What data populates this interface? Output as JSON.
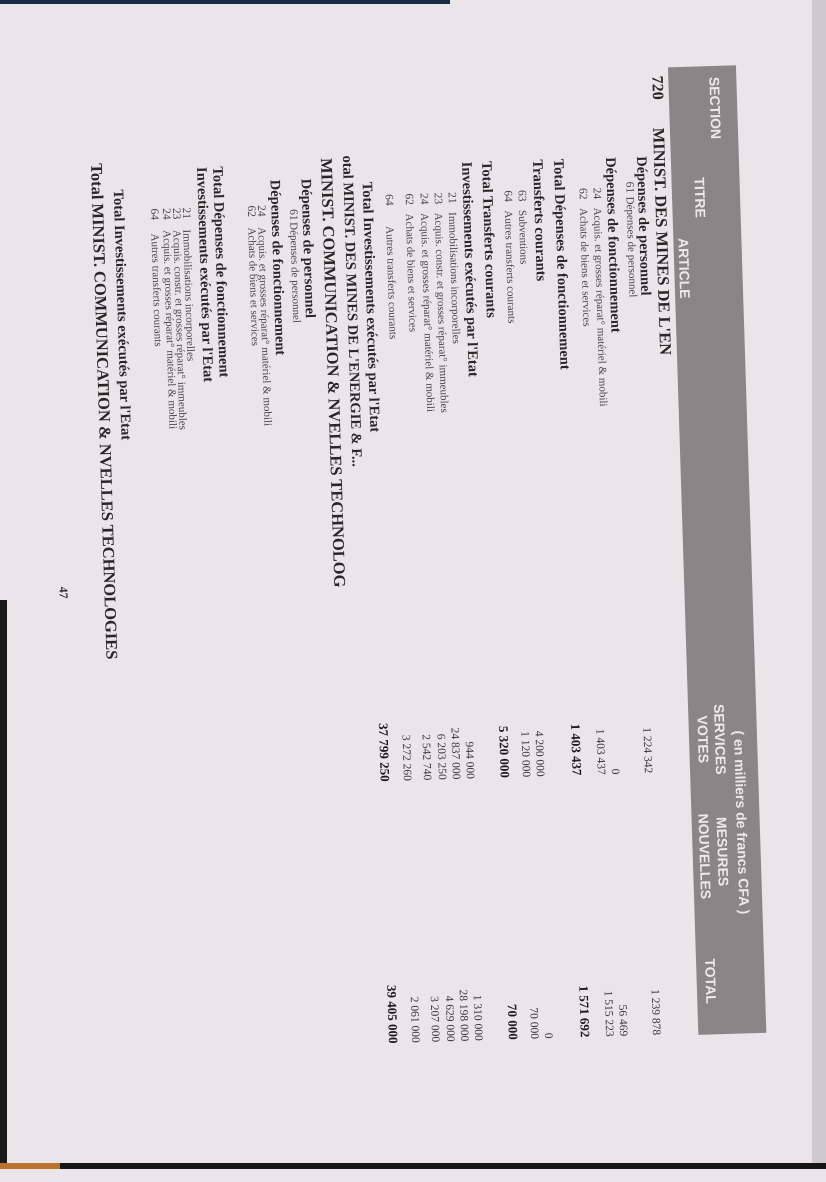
{
  "header": {
    "section": "SECTION",
    "titre": "TITRE",
    "article": "ARTICLE",
    "unit_note": "( en milliers de francs CFA )",
    "services_votes_line1": "SERVICES",
    "services_votes_line2": "VOTES",
    "mesures_nouvelles_line1": "MESURES",
    "mesures_nouvelles_line2": "NOUVELLES",
    "total": "TOTAL"
  },
  "rows": [
    {
      "type": "ministry",
      "code": "720",
      "label": "MINIST. DES MINES DE L'EN",
      "votes": "",
      "mesures": "",
      "total": ""
    },
    {
      "type": "heading",
      "code": "",
      "label": "Dépenses de personnel",
      "votes": "",
      "mesures": "",
      "total": ""
    },
    {
      "type": "item",
      "code": "61",
      "label": "Dépenses de personnel",
      "votes": "1 224 342",
      "mesures": "",
      "total": "1 239 878"
    },
    {
      "type": "heading",
      "code": "",
      "label": "Dépenses de fonctionnement",
      "votes": "",
      "mesures": "",
      "total": ""
    },
    {
      "type": "item",
      "code": "24",
      "label": "Acquis. et grosses réparat° matériel & mobili",
      "votes": "0",
      "mesures": "",
      "total": "56 469"
    },
    {
      "type": "item",
      "code": "62",
      "label": "Achats de biens et services",
      "votes": "1 403 437",
      "mesures": "",
      "total": "1 515 223"
    },
    {
      "type": "total",
      "code": "",
      "label": "Total  Dépenses de fonctionnement",
      "votes": "1 403 437",
      "mesures": "",
      "total": "1 571 692"
    },
    {
      "type": "heading",
      "code": "",
      "label": "Transferts courants",
      "votes": "",
      "mesures": "",
      "total": ""
    },
    {
      "type": "item",
      "code": "63",
      "label": "Subventions",
      "votes": "4 200 000",
      "mesures": "",
      "total": "0"
    },
    {
      "type": "item",
      "code": "64",
      "label": "Autres transferts courants",
      "votes": "1 120 000",
      "mesures": "",
      "total": "70 000"
    },
    {
      "type": "total",
      "code": "",
      "label": "Total  Transferts courants",
      "votes": "5 320 000",
      "mesures": "",
      "total": "70 000"
    },
    {
      "type": "heading",
      "code": "",
      "label": "Investissements exécutés par l'Etat",
      "votes": "",
      "mesures": "",
      "total": ""
    },
    {
      "type": "item",
      "code": "21",
      "label": "Immobilisations incorporelles",
      "votes": "944 000",
      "mesures": "",
      "total": "1 310 000"
    },
    {
      "type": "item",
      "code": "23",
      "label": "Acquis. constr. et grosses réparat° immeubles",
      "votes": "24 837 000",
      "mesures": "",
      "total": "28 198 000"
    },
    {
      "type": "item",
      "code": "24",
      "label": "Acquis. et grosses réparat° matériel & mobili",
      "votes": "6 203 250",
      "mesures": "",
      "total": "4 629 000"
    },
    {
      "type": "item",
      "code": "62",
      "label": "Achats de biens et services",
      "votes": "2 542 740",
      "mesures": "",
      "total": "3 207 000"
    },
    {
      "type": "item",
      "code": "64",
      "label": "Autres transferts courants",
      "votes": "3 272 260",
      "mesures": "",
      "total": "2 061 000"
    },
    {
      "type": "total",
      "code": "",
      "label": "Total  Investissements exécutés par l'Etat",
      "votes": "37 799 250",
      "mesures": "",
      "total": "39 405 000"
    },
    {
      "type": "total",
      "code": "",
      "label": "otal  MINIST. DES MINES DE L'ENERGIE & F...",
      "votes": "",
      "mesures": "",
      "total": ""
    },
    {
      "type": "ministry",
      "code": "",
      "label": "MINIST. COMMUNICATION & NVELLES TECHNOLOG",
      "votes": "",
      "mesures": "",
      "total": ""
    },
    {
      "type": "heading",
      "code": "",
      "label": "Dépenses de personnel",
      "votes": "",
      "mesures": "",
      "total": ""
    },
    {
      "type": "item",
      "code": "61",
      "label": "Dépenses de personnel",
      "votes": "",
      "mesures": "",
      "total": ""
    },
    {
      "type": "heading",
      "code": "",
      "label": "Dépenses de fonctionnement",
      "votes": "",
      "mesures": "",
      "total": ""
    },
    {
      "type": "item",
      "code": "24",
      "label": "Acquis. et grosses réparat° matériel & mobili",
      "votes": "",
      "mesures": "",
      "total": ""
    },
    {
      "type": "item",
      "code": "62",
      "label": "Achats de biens et services",
      "votes": "",
      "mesures": "",
      "total": ""
    },
    {
      "type": "total",
      "code": "",
      "label": "Total  Dépenses de fonctionnement",
      "votes": "",
      "mesures": "",
      "total": ""
    },
    {
      "type": "heading",
      "code": "",
      "label": "Investissements exécutés par l'Etat",
      "votes": "",
      "mesures": "",
      "total": ""
    },
    {
      "type": "item",
      "code": "21",
      "label": "Immobilisations incorporelles",
      "votes": "",
      "mesures": "",
      "total": ""
    },
    {
      "type": "item",
      "code": "23",
      "label": "Acquis. constr. et grosses réparat° immeubles",
      "votes": "",
      "mesures": "",
      "total": ""
    },
    {
      "type": "item",
      "code": "24",
      "label": "Acquis. et grosses réparat° matériel & mobili",
      "votes": "",
      "mesures": "",
      "total": ""
    },
    {
      "type": "item",
      "code": "64",
      "label": "Autres transferts courants",
      "votes": "",
      "mesures": "",
      "total": ""
    },
    {
      "type": "total",
      "code": "",
      "label": "Total  Investissements exécutés par l'Etat",
      "votes": "",
      "mesures": "",
      "total": ""
    },
    {
      "type": "ministry",
      "code": "",
      "label": "Total  MINIST. COMMUNICATION & NVELLES TECHNOLOGIES",
      "votes": "",
      "mesures": "",
      "total": ""
    }
  ],
  "page_number": "47",
  "colors": {
    "paper": "#ebe5ea",
    "header_band": "#8b8588",
    "header_text": "#ece8ec",
    "ink": "#2a2628"
  }
}
